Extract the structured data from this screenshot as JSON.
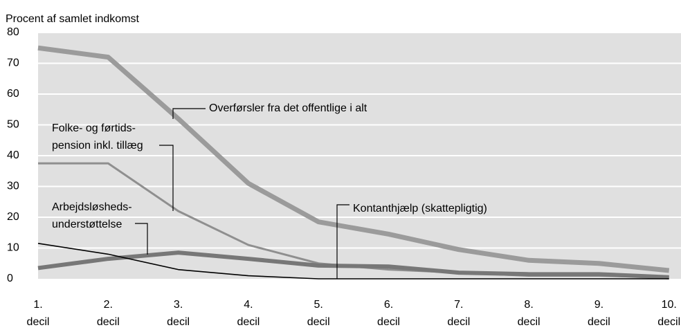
{
  "chart_data": {
    "type": "line",
    "y_label": "Procent af samlet indkomst",
    "categories": [
      [
        "1.",
        "decil"
      ],
      [
        "2.",
        "decil"
      ],
      [
        "3.",
        "decil"
      ],
      [
        "4.",
        "decil"
      ],
      [
        "5.",
        "decil"
      ],
      [
        "6.",
        "decil"
      ],
      [
        "7.",
        "decil"
      ],
      [
        "8.",
        "decil"
      ],
      [
        "9.",
        "decil"
      ],
      [
        "10.",
        "decil"
      ]
    ],
    "ylim": [
      0,
      80
    ],
    "yticks": [
      0,
      10,
      20,
      30,
      40,
      50,
      60,
      70,
      80
    ],
    "grid": true,
    "series": [
      {
        "name": "Overførsler fra det  offentlige i alt",
        "color": "#9b9b9b",
        "values": [
          75,
          72,
          52,
          31,
          18.5,
          14.5,
          9.5,
          6,
          5,
          2.7
        ]
      },
      {
        "name": "Folke- og førtidspension inkl. tillæg",
        "color": "#8f8f8f",
        "values": [
          37.5,
          37.5,
          22,
          11,
          5,
          3,
          2,
          1,
          1,
          0.5
        ]
      },
      {
        "name": "Arbejdsløshedsunderstøttelse",
        "color": "#777777",
        "values": [
          3.5,
          6.5,
          8.5,
          6.5,
          4.3,
          4,
          2,
          1.5,
          1.5,
          0.5
        ]
      },
      {
        "name": "Kontanthjælp (skattepligtig)",
        "color": "#000000",
        "values": [
          11.5,
          8,
          3,
          1,
          0,
          0,
          0,
          0,
          0,
          0
        ]
      }
    ],
    "annotations": [
      {
        "lines": [
          "Overførsler fra det  offentlige i alt"
        ]
      },
      {
        "lines": [
          "Folke- og førtids-",
          "pension inkl. tillæg"
        ]
      },
      {
        "lines": [
          "Arbejdsløsheds-",
          "understøttelse"
        ]
      },
      {
        "lines": [
          "Kontanthjælp (skattepligtig)"
        ]
      }
    ]
  }
}
